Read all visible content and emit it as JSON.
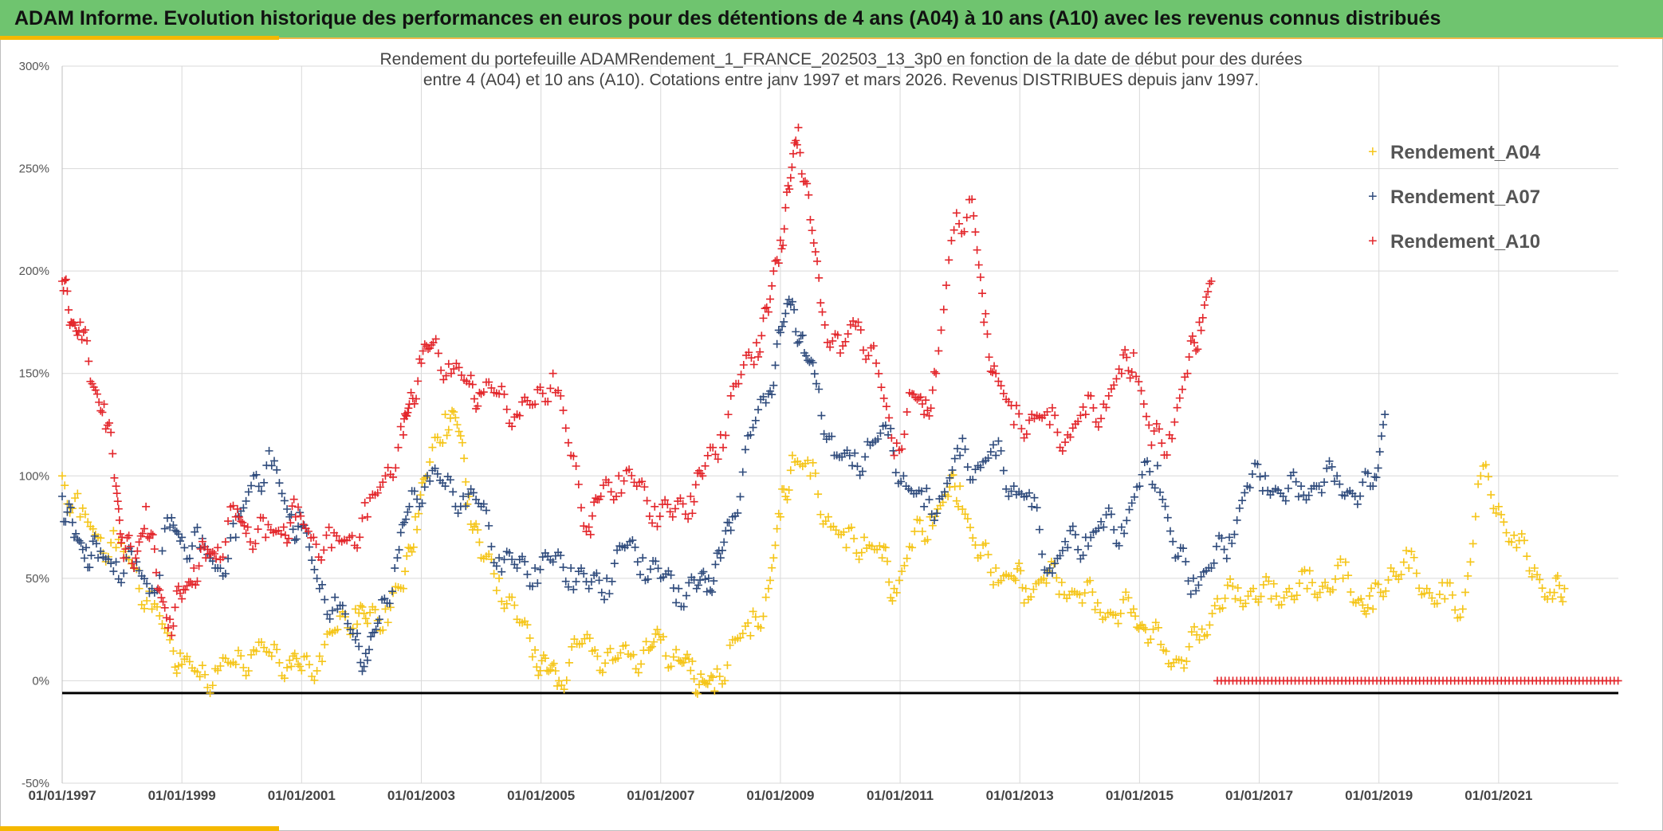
{
  "header": {
    "title": "ADAM Informe. Evolution historique des performances en euros pour des détentions de 4 ans (A04) à 10 ans (A10) avec les revenus connus distribués"
  },
  "colors": {
    "header_bg": "#6fc46f",
    "accent": "#f5b800",
    "a04": "#f5c518",
    "a07": "#2f4b7c",
    "a10": "#e3262b"
  },
  "chart_data": {
    "type": "scatter",
    "title_line1": "Rendement du portefeuille ADAMRendement_1_FRANCE_202503_13_3p0 en fonction de la date de début pour des durées",
    "title_line2": "entre 4 (A04) et 10 ans (A10). Cotations entre janv 1997 et mars 2026. Revenus DISTRIBUES depuis janv 1997.",
    "xlabel": "",
    "ylabel": "",
    "xlim": [
      1997.0,
      2023.0
    ],
    "ylim": [
      -50,
      300
    ],
    "y_ticks": [
      -50,
      0,
      50,
      100,
      150,
      200,
      250,
      300
    ],
    "y_tick_labels": [
      "-50%",
      "0%",
      "50%",
      "100%",
      "150%",
      "200%",
      "250%",
      "300%"
    ],
    "x_ticks": [
      1997,
      1999,
      2001,
      2003,
      2005,
      2007,
      2009,
      2011,
      2013,
      2015,
      2017,
      2019,
      2021
    ],
    "x_tick_labels": [
      "01/01/1997",
      "01/01/1999",
      "01/01/2001",
      "01/01/2003",
      "01/01/2005",
      "01/01/2007",
      "01/01/2009",
      "01/01/2011",
      "01/01/2013",
      "01/01/2015",
      "01/01/2017",
      "01/01/2019",
      "01/01/2021"
    ],
    "reference_line_y": -6,
    "legend_position": "top-right",
    "series": [
      {
        "name": "Rendement_A04",
        "color": "#f5c518",
        "x": [
          1997.0,
          1997.3,
          1997.6,
          1997.9,
          1998.2,
          1998.5,
          1998.8,
          1999.0,
          1999.3,
          1999.6,
          1999.9,
          2000.2,
          2000.5,
          2000.8,
          2001.0,
          2001.3,
          2001.6,
          2001.9,
          2002.1,
          2002.4,
          2002.7,
          2002.9,
          2003.1,
          2003.4,
          2003.6,
          2003.8,
          2004.0,
          2004.3,
          2004.6,
          2004.9,
          2005.1,
          2005.3,
          2005.6,
          2005.9,
          2006.2,
          2006.5,
          2006.8,
          2007.0,
          2007.3,
          2007.5,
          2007.7,
          2007.9,
          2008.2,
          2008.5,
          2008.8,
          2009.0,
          2009.2,
          2009.5,
          2009.8,
          2010.1,
          2010.4,
          2010.7,
          2010.9,
          2011.2,
          2011.5,
          2011.8,
          2012.0,
          2012.3,
          2012.6,
          2012.9,
          2013.1,
          2013.4,
          2013.7,
          2014.0,
          2014.3,
          2014.6,
          2014.9,
          2015.1,
          2015.4,
          2015.7,
          2016.0,
          2016.3,
          2016.6,
          2016.9,
          2017.2,
          2017.5,
          2017.8,
          2018.1,
          2018.4,
          2018.7,
          2018.9,
          2019.2,
          2019.5,
          2019.8,
          2020.1,
          2020.4,
          2020.7,
          2021.0,
          2021.3,
          2021.6,
          2021.9,
          2022.1
        ],
        "values": [
          100,
          80,
          70,
          65,
          55,
          35,
          20,
          8,
          2,
          5,
          8,
          15,
          12,
          10,
          5,
          12,
          25,
          35,
          28,
          35,
          45,
          80,
          100,
          130,
          125,
          90,
          60,
          50,
          30,
          15,
          5,
          0,
          18,
          15,
          10,
          12,
          15,
          20,
          10,
          5,
          0,
          -5,
          20,
          22,
          45,
          80,
          110,
          100,
          80,
          65,
          70,
          60,
          45,
          65,
          80,
          90,
          95,
          60,
          55,
          50,
          45,
          50,
          48,
          42,
          38,
          32,
          35,
          25,
          15,
          10,
          20,
          40,
          40,
          45,
          40,
          45,
          45,
          48,
          50,
          40,
          35,
          55,
          55,
          45,
          40,
          35,
          100,
          85,
          65,
          55,
          40,
          45
        ]
      },
      {
        "name": "Rendement_A07",
        "color": "#2f4b7c",
        "x": [
          1997.0,
          1997.2,
          1997.4,
          1997.6,
          1997.9,
          1998.2,
          1998.5,
          1998.8,
          1999.0,
          1999.3,
          1999.6,
          1999.9,
          2000.2,
          2000.5,
          2000.8,
          2001.0,
          2001.3,
          2001.6,
          2001.9,
          2002.1,
          2002.3,
          2002.6,
          2002.8,
          2003.1,
          2003.4,
          2003.7,
          2004.0,
          2004.3,
          2004.6,
          2004.9,
          2005.2,
          2005.5,
          2005.8,
          2006.1,
          2006.4,
          2006.7,
          2007.0,
          2007.3,
          2007.6,
          2007.8,
          2008.0,
          2008.2,
          2008.5,
          2008.8,
          2009.0,
          2009.2,
          2009.4,
          2009.6,
          2009.9,
          2010.2,
          2010.5,
          2010.8,
          2011.1,
          2011.4,
          2011.7,
          2012.0,
          2012.3,
          2012.6,
          2012.9,
          2013.2,
          2013.5,
          2013.8,
          2014.1,
          2014.4,
          2014.7,
          2015.0,
          2015.3,
          2015.6,
          2015.9,
          2016.2,
          2016.5,
          2016.8,
          2017.1,
          2017.4,
          2017.7,
          2018.0,
          2018.3,
          2018.6,
          2018.9,
          2019.1
        ],
        "values": [
          90,
          70,
          65,
          60,
          58,
          55,
          45,
          75,
          70,
          65,
          55,
          70,
          100,
          105,
          80,
          75,
          45,
          35,
          20,
          10,
          30,
          60,
          85,
          100,
          95,
          90,
          85,
          60,
          55,
          55,
          58,
          55,
          45,
          50,
          65,
          60,
          50,
          45,
          45,
          50,
          60,
          80,
          120,
          140,
          170,
          185,
          160,
          145,
          110,
          105,
          115,
          120,
          95,
          85,
          90,
          110,
          105,
          110,
          95,
          85,
          55,
          65,
          70,
          75,
          75,
          95,
          105,
          60,
          50,
          55,
          70,
          95,
          100,
          90,
          95,
          95,
          100,
          90,
          95,
          130
        ]
      },
      {
        "name": "Rendement_A10",
        "color": "#e3262b",
        "x": [
          1997.0,
          1997.15,
          1997.3,
          1997.5,
          1997.7,
          1997.9,
          1998.0,
          1998.2,
          1998.4,
          1998.6,
          1998.8,
          1999.0,
          1999.2,
          1999.4,
          1999.6,
          1999.9,
          2000.1,
          2000.4,
          2000.7,
          2000.9,
          2001.2,
          2001.5,
          2001.8,
          2002.1,
          2002.4,
          2002.7,
          2002.8,
          2003.0,
          2003.2,
          2003.5,
          2003.8,
          2004.0,
          2004.3,
          2004.6,
          2004.9,
          2005.2,
          2005.5,
          2005.8,
          2006.0,
          2006.3,
          2006.6,
          2006.9,
          2007.2,
          2007.5,
          2007.7,
          2008.0,
          2008.3,
          2008.6,
          2008.8,
          2009.0,
          2009.15,
          2009.3,
          2009.5,
          2009.7,
          2010.0,
          2010.3,
          2010.6,
          2010.9,
          2011.2,
          2011.4,
          2011.6,
          2011.9,
          2012.2,
          2012.4,
          2012.6,
          2012.9,
          2013.2,
          2013.5,
          2013.8,
          2014.1,
          2014.4,
          2014.7,
          2014.9,
          2015.2,
          2015.5,
          2015.8,
          2016.0,
          2016.2
        ],
        "values": [
          195,
          175,
          175,
          145,
          135,
          95,
          70,
          55,
          85,
          45,
          30,
          40,
          55,
          60,
          65,
          80,
          75,
          70,
          75,
          80,
          70,
          65,
          70,
          80,
          100,
          120,
          135,
          155,
          165,
          150,
          145,
          140,
          140,
          130,
          135,
          150,
          110,
          75,
          90,
          100,
          95,
          85,
          80,
          90,
          100,
          120,
          145,
          165,
          180,
          215,
          240,
          270,
          225,
          180,
          160,
          175,
          155,
          110,
          140,
          130,
          150,
          220,
          235,
          175,
          150,
          125,
          130,
          125,
          120,
          130,
          135,
          150,
          160,
          115,
          120,
          150,
          175,
          195
        ]
      }
    ],
    "zero_segment": {
      "series": "Rendement_A10",
      "x_start": 2016.3,
      "x_end": 2023.0,
      "value": 0
    }
  }
}
